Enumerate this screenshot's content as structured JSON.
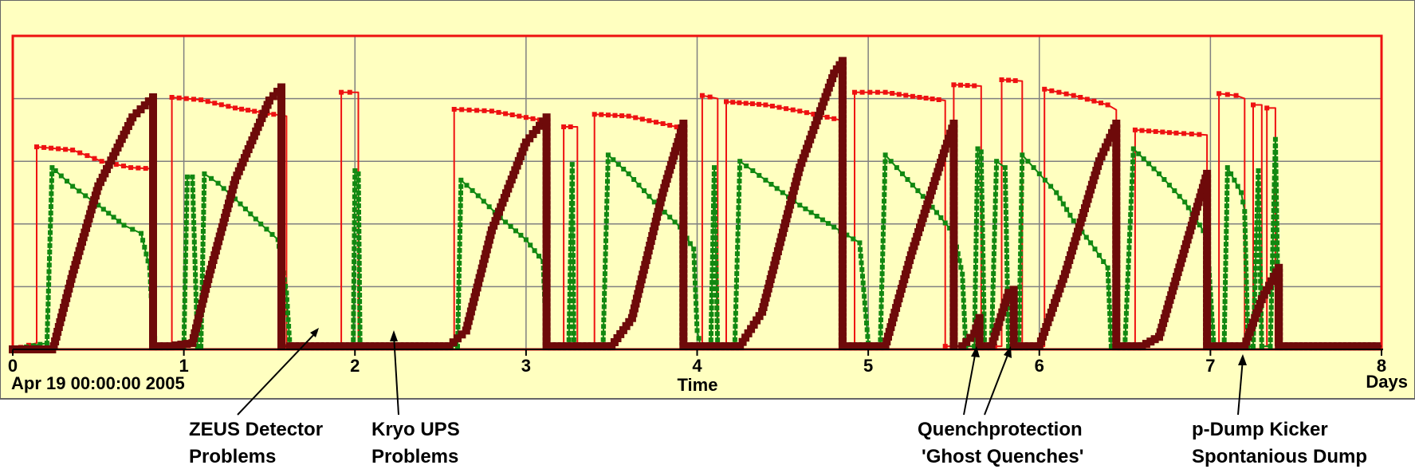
{
  "chart_data": {
    "type": "line",
    "title": "",
    "xlabel": "Time",
    "x_unit": "Days",
    "start_label": "Apr 19 00:00:00 2005",
    "xlim": [
      0,
      8
    ],
    "ylim": [
      0,
      5
    ],
    "xticks": [
      0,
      1,
      2,
      3,
      4,
      5,
      6,
      7,
      8
    ],
    "ytick_labels_shown": false,
    "grid": true,
    "colors": {
      "background": "#FFFFC0",
      "red": "#EE1111",
      "green": "#118811",
      "maroon": "#6E0A0A",
      "grid": "#808080"
    },
    "series": [
      {
        "color": "#EE1111",
        "points": [
          [
            0,
            0
          ],
          [
            0.14,
            0.1
          ],
          [
            0.14,
            3.23
          ],
          [
            0.35,
            3.18
          ],
          [
            0.52,
            3.0
          ],
          [
            0.69,
            2.9
          ],
          [
            0.82,
            2.88
          ],
          [
            0.82,
            0.05
          ],
          [
            0.93,
            0.05
          ],
          [
            0.93,
            4.02
          ],
          [
            1.1,
            3.98
          ],
          [
            1.3,
            3.85
          ],
          [
            1.45,
            3.78
          ],
          [
            1.6,
            3.72
          ],
          [
            1.6,
            0.05
          ],
          [
            1.92,
            0.05
          ],
          [
            1.92,
            4.1
          ],
          [
            2.02,
            4.1
          ],
          [
            2.02,
            0.05
          ],
          [
            2.58,
            0.05
          ],
          [
            2.58,
            3.83
          ],
          [
            2.8,
            3.8
          ],
          [
            3.0,
            3.7
          ],
          [
            3.12,
            3.64
          ],
          [
            3.12,
            0.05
          ],
          [
            3.22,
            0.05
          ],
          [
            3.22,
            3.55
          ],
          [
            3.3,
            3.55
          ],
          [
            3.3,
            0.05
          ],
          [
            3.4,
            0.05
          ],
          [
            3.4,
            3.75
          ],
          [
            3.6,
            3.72
          ],
          [
            3.8,
            3.6
          ],
          [
            3.92,
            3.52
          ],
          [
            3.92,
            0.05
          ],
          [
            4.03,
            0.05
          ],
          [
            4.03,
            4.05
          ],
          [
            4.12,
            4.0
          ],
          [
            4.12,
            0.05
          ],
          [
            4.17,
            0.05
          ],
          [
            4.17,
            3.95
          ],
          [
            4.4,
            3.9
          ],
          [
            4.6,
            3.8
          ],
          [
            4.8,
            3.68
          ],
          [
            4.85,
            3.65
          ],
          [
            4.85,
            0.05
          ],
          [
            4.92,
            0.05
          ],
          [
            4.92,
            4.1
          ],
          [
            5.1,
            4.1
          ],
          [
            5.3,
            4.02
          ],
          [
            5.45,
            3.97
          ],
          [
            5.45,
            0.05
          ],
          [
            5.5,
            0.05
          ],
          [
            5.5,
            4.22
          ],
          [
            5.66,
            4.2
          ],
          [
            5.66,
            0.05
          ],
          [
            5.78,
            0.05
          ],
          [
            5.78,
            4.3
          ],
          [
            5.9,
            4.28
          ],
          [
            5.9,
            0.05
          ],
          [
            6.03,
            0.05
          ],
          [
            6.03,
            4.15
          ],
          [
            6.2,
            4.05
          ],
          [
            6.4,
            3.9
          ],
          [
            6.45,
            3.82
          ],
          [
            6.45,
            0.05
          ],
          [
            6.56,
            0.05
          ],
          [
            6.56,
            3.5
          ],
          [
            6.8,
            3.45
          ],
          [
            6.98,
            3.42
          ],
          [
            6.98,
            0.05
          ],
          [
            7.05,
            0.05
          ],
          [
            7.05,
            4.08
          ],
          [
            7.15,
            4.05
          ],
          [
            7.2,
            4.0
          ],
          [
            7.2,
            0.05
          ],
          [
            7.25,
            0.05
          ],
          [
            7.25,
            3.9
          ],
          [
            7.3,
            3.9
          ],
          [
            7.3,
            0.05
          ],
          [
            7.33,
            0.05
          ],
          [
            7.33,
            3.85
          ],
          [
            7.38,
            3.85
          ],
          [
            7.38,
            0.05
          ]
        ]
      },
      {
        "color": "#118811",
        "points": [
          [
            0,
            0
          ],
          [
            0.2,
            0.1
          ],
          [
            0.23,
            2.9
          ],
          [
            0.25,
            2.85
          ],
          [
            0.35,
            2.6
          ],
          [
            0.5,
            2.3
          ],
          [
            0.65,
            1.98
          ],
          [
            0.75,
            1.85
          ],
          [
            0.8,
            1.3
          ],
          [
            0.82,
            0.3
          ],
          [
            0.84,
            0.05
          ],
          [
            1.0,
            0.05
          ],
          [
            1.02,
            2.75
          ],
          [
            1.05,
            2.75
          ],
          [
            1.08,
            0.05
          ],
          [
            1.1,
            0.05
          ],
          [
            1.12,
            2.8
          ],
          [
            1.2,
            2.65
          ],
          [
            1.3,
            2.4
          ],
          [
            1.45,
            2.0
          ],
          [
            1.55,
            1.75
          ],
          [
            1.6,
            0.9
          ],
          [
            1.62,
            0.05
          ],
          [
            1.99,
            0.05
          ],
          [
            2.0,
            2.85
          ],
          [
            2.02,
            2.8
          ],
          [
            2.03,
            0.05
          ],
          [
            2.6,
            0.05
          ],
          [
            2.62,
            2.7
          ],
          [
            2.72,
            2.45
          ],
          [
            2.85,
            2.1
          ],
          [
            3.0,
            1.75
          ],
          [
            3.1,
            1.4
          ],
          [
            3.12,
            0.05
          ],
          [
            3.25,
            0.05
          ],
          [
            3.27,
            2.95
          ],
          [
            3.28,
            0.05
          ],
          [
            3.45,
            0.05
          ],
          [
            3.48,
            3.1
          ],
          [
            3.6,
            2.8
          ],
          [
            3.75,
            2.35
          ],
          [
            3.9,
            1.95
          ],
          [
            3.98,
            1.6
          ],
          [
            4.0,
            0.3
          ],
          [
            4.02,
            0.05
          ],
          [
            4.08,
            0.05
          ],
          [
            4.1,
            2.9
          ],
          [
            4.12,
            0.05
          ],
          [
            4.22,
            0.05
          ],
          [
            4.25,
            3.0
          ],
          [
            4.4,
            2.7
          ],
          [
            4.6,
            2.3
          ],
          [
            4.8,
            1.95
          ],
          [
            4.95,
            1.7
          ],
          [
            5.0,
            0.1
          ],
          [
            5.03,
            0.05
          ],
          [
            5.07,
            0.05
          ],
          [
            5.1,
            3.1
          ],
          [
            5.2,
            2.8
          ],
          [
            5.35,
            2.35
          ],
          [
            5.5,
            1.85
          ],
          [
            5.55,
            1.2
          ],
          [
            5.57,
            0.05
          ],
          [
            5.62,
            0.05
          ],
          [
            5.64,
            3.2
          ],
          [
            5.66,
            3.15
          ],
          [
            5.68,
            0.05
          ],
          [
            5.72,
            0.05
          ],
          [
            5.75,
            3.0
          ],
          [
            5.8,
            2.9
          ],
          [
            5.82,
            0.05
          ],
          [
            5.88,
            0.05
          ],
          [
            5.9,
            3.1
          ],
          [
            6.0,
            2.8
          ],
          [
            6.1,
            2.5
          ],
          [
            6.2,
            2.05
          ],
          [
            6.3,
            1.7
          ],
          [
            6.4,
            1.3
          ],
          [
            6.42,
            0.05
          ],
          [
            6.5,
            0.05
          ],
          [
            6.55,
            3.2
          ],
          [
            6.7,
            2.8
          ],
          [
            6.85,
            2.35
          ],
          [
            6.98,
            1.8
          ],
          [
            7.02,
            0.05
          ],
          [
            7.08,
            0.05
          ],
          [
            7.1,
            2.9
          ],
          [
            7.18,
            2.5
          ],
          [
            7.2,
            2.2
          ],
          [
            7.22,
            0.05
          ],
          [
            7.25,
            0.05
          ],
          [
            7.28,
            2.85
          ],
          [
            7.3,
            0.05
          ],
          [
            7.35,
            0.05
          ],
          [
            7.38,
            3.35
          ],
          [
            7.4,
            0.05
          ]
        ]
      },
      {
        "color": "#6E0A0A",
        "points": [
          [
            0,
            0
          ],
          [
            0.23,
            0.0
          ],
          [
            0.24,
            0.05
          ],
          [
            0.35,
            1.2
          ],
          [
            0.5,
            2.6
          ],
          [
            0.7,
            3.7
          ],
          [
            0.82,
            4.02
          ],
          [
            0.82,
            0.05
          ],
          [
            0.92,
            0.05
          ],
          [
            1.05,
            0.1
          ],
          [
            1.15,
            1.2
          ],
          [
            1.3,
            2.7
          ],
          [
            1.5,
            3.97
          ],
          [
            1.57,
            4.18
          ],
          [
            1.57,
            0.05
          ],
          [
            1.62,
            0.05
          ],
          [
            2.0,
            0.05
          ],
          [
            2.32,
            0.05
          ],
          [
            2.55,
            0.05
          ],
          [
            2.65,
            0.3
          ],
          [
            2.8,
            1.9
          ],
          [
            3.0,
            3.3
          ],
          [
            3.12,
            3.7
          ],
          [
            3.12,
            0.05
          ],
          [
            3.3,
            0.05
          ],
          [
            3.5,
            0.05
          ],
          [
            3.62,
            0.5
          ],
          [
            3.8,
            2.5
          ],
          [
            3.92,
            3.6
          ],
          [
            3.92,
            0.05
          ],
          [
            4.05,
            0.05
          ],
          [
            4.25,
            0.05
          ],
          [
            4.38,
            0.6
          ],
          [
            4.6,
            2.9
          ],
          [
            4.8,
            4.4
          ],
          [
            4.85,
            4.6
          ],
          [
            4.85,
            0.05
          ],
          [
            5.0,
            0.05
          ],
          [
            5.1,
            0.05
          ],
          [
            5.25,
            1.5
          ],
          [
            5.45,
            3.2
          ],
          [
            5.5,
            3.6
          ],
          [
            5.5,
            0.05
          ],
          [
            5.55,
            0.05
          ],
          [
            5.62,
            0.25
          ],
          [
            5.65,
            0.5
          ],
          [
            5.65,
            0.05
          ],
          [
            5.72,
            0.05
          ],
          [
            5.82,
            0.9
          ],
          [
            5.85,
            0.95
          ],
          [
            5.85,
            0.05
          ],
          [
            6.0,
            0.05
          ],
          [
            6.15,
            1.2
          ],
          [
            6.35,
            3.0
          ],
          [
            6.45,
            3.6
          ],
          [
            6.45,
            0.05
          ],
          [
            6.6,
            0.05
          ],
          [
            6.7,
            0.2
          ],
          [
            6.85,
            1.6
          ],
          [
            6.98,
            2.8
          ],
          [
            6.98,
            0.05
          ],
          [
            7.05,
            0.05
          ],
          [
            7.2,
            0.05
          ],
          [
            7.3,
            0.8
          ],
          [
            7.4,
            1.3
          ],
          [
            7.4,
            0.05
          ],
          [
            8,
            0.05
          ]
        ]
      }
    ],
    "annotations": [
      {
        "lines": [
          "ZEUS Detector",
          "Problems"
        ],
        "x": 1.78,
        "y": 0.3
      },
      {
        "lines": [
          "Kryo UPS",
          "Problems"
        ],
        "x": 2.23,
        "y": 0.25
      },
      {
        "lines": [
          "Quenchprotection",
          "'Ghost Quenches'"
        ],
        "x": [
          5.62,
          5.85
        ],
        "y": [
          0.1,
          0.1
        ]
      },
      {
        "lines": [
          "p-Dump Kicker",
          "Spontanious Dump"
        ],
        "x": 7.2,
        "y": 0.0
      }
    ]
  }
}
